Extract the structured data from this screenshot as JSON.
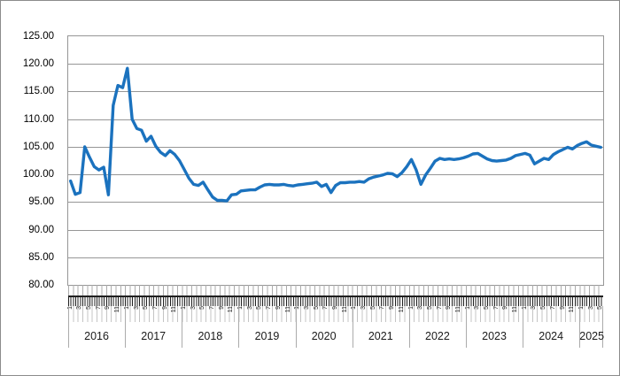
{
  "chart": {
    "background": "#FFFFFF",
    "border_color": "#8C8C8C",
    "title": "",
    "legend": "none"
  },
  "colors": {
    "line": "#1B72BE",
    "gridline": "#969696",
    "plot_border": "#969696",
    "month_tick": "#ABABAB",
    "axis_line": "#1F1F1F",
    "text": "#000000"
  },
  "chart_data": {
    "type": "line",
    "title": "",
    "xlabel": "",
    "ylabel": "",
    "grid": "horizontal",
    "legend_position": "none",
    "y_axis": {
      "min": 80,
      "max": 125,
      "step": 5,
      "tick_labels": [
        "125.00",
        "120.00",
        "115.00",
        "110.00",
        "105.00",
        "100.00",
        "95.00",
        "90.00",
        "85.00",
        "80.00"
      ]
    },
    "x_axis": {
      "levels": [
        "month",
        "year"
      ],
      "years": [
        {
          "label": "2016",
          "month_count": 12,
          "shown_month_ticks": [
            "1",
            "3",
            "5",
            "7",
            "9",
            "11"
          ]
        },
        {
          "label": "2017",
          "month_count": 12,
          "shown_month_ticks": [
            "1",
            "3",
            "5",
            "7",
            "9",
            "11"
          ]
        },
        {
          "label": "2018",
          "month_count": 12,
          "shown_month_ticks": [
            "1",
            "3",
            "5",
            "7",
            "9",
            "11"
          ]
        },
        {
          "label": "2019",
          "month_count": 12,
          "shown_month_ticks": [
            "1",
            "3",
            "5",
            "7",
            "9",
            "11"
          ]
        },
        {
          "label": "2020",
          "month_count": 12,
          "shown_month_ticks": [
            "1",
            "3",
            "5",
            "7",
            "9",
            "11"
          ]
        },
        {
          "label": "2021",
          "month_count": 12,
          "shown_month_ticks": [
            "1",
            "3",
            "5",
            "7",
            "9",
            "11"
          ]
        },
        {
          "label": "2022",
          "month_count": 12,
          "shown_month_ticks": [
            "1",
            "3",
            "5",
            "7",
            "9",
            "11"
          ]
        },
        {
          "label": "2023",
          "month_count": 12,
          "shown_month_ticks": [
            "1",
            "3",
            "5",
            "7",
            "9",
            "11"
          ]
        },
        {
          "label": "2024",
          "month_count": 12,
          "shown_month_ticks": [
            "1",
            "3",
            "5",
            "7",
            "9",
            "11"
          ]
        },
        {
          "label": "2025",
          "month_count": 5,
          "shown_month_ticks": [
            "1",
            "3",
            "5"
          ]
        }
      ]
    },
    "series": [
      {
        "name": "",
        "color": "#1B72BE",
        "values": [
          98.8,
          96.4,
          96.7,
          105.0,
          103.1,
          101.4,
          100.8,
          101.3,
          96.3,
          112.5,
          116.1,
          115.7,
          119.2,
          110.0,
          108.3,
          108.0,
          106.0,
          106.9,
          105.1,
          104.0,
          103.4,
          104.3,
          103.6,
          102.5,
          100.9,
          99.3,
          98.2,
          98.0,
          98.6,
          97.2,
          95.9,
          95.3,
          95.3,
          95.2,
          96.3,
          96.4,
          97.0,
          97.1,
          97.2,
          97.2,
          97.7,
          98.1,
          98.2,
          98.1,
          98.1,
          98.2,
          98.0,
          97.9,
          98.1,
          98.2,
          98.3,
          98.4,
          98.6,
          97.8,
          98.2,
          96.7,
          98.0,
          98.5,
          98.5,
          98.6,
          98.6,
          98.7,
          98.6,
          99.2,
          99.5,
          99.7,
          99.9,
          100.2,
          100.1,
          99.6,
          100.3,
          101.4,
          102.7,
          100.8,
          98.2,
          99.9,
          101.1,
          102.4,
          102.9,
          102.7,
          102.8,
          102.7,
          102.8,
          103.0,
          103.3,
          103.7,
          103.8,
          103.3,
          102.8,
          102.5,
          102.4,
          102.5,
          102.6,
          102.9,
          103.4,
          103.6,
          103.8,
          103.5,
          101.9,
          102.4,
          102.9,
          102.7,
          103.6,
          104.1,
          104.5,
          104.9,
          104.6,
          105.2,
          105.6,
          105.9,
          105.3,
          105.1,
          104.9
        ]
      }
    ]
  }
}
